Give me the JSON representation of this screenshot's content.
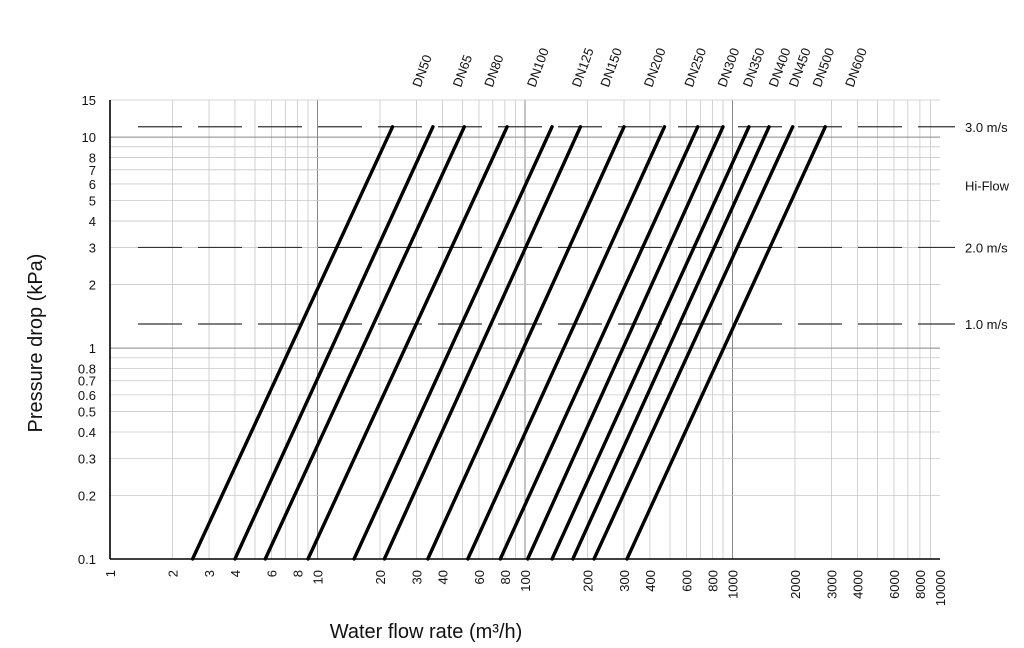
{
  "chart_data": {
    "type": "line",
    "xlabel": "Water flow rate (m³/h)",
    "ylabel": "Pressure drop (kPa)",
    "x_scale": "log",
    "y_scale": "log",
    "xlim": [
      1,
      10000
    ],
    "ylim": [
      0.1,
      15
    ],
    "grid": true,
    "x_ticks": [
      {
        "v": 1,
        "label": "1"
      },
      {
        "v": 2,
        "label": "2"
      },
      {
        "v": 3,
        "label": "3"
      },
      {
        "v": 4,
        "label": "4"
      },
      {
        "v": 6,
        "label": "6"
      },
      {
        "v": 8,
        "label": "8"
      },
      {
        "v": 10,
        "label": "10"
      },
      {
        "v": 20,
        "label": "20"
      },
      {
        "v": 30,
        "label": "30"
      },
      {
        "v": 40,
        "label": "40"
      },
      {
        "v": 60,
        "label": "60"
      },
      {
        "v": 80,
        "label": "80"
      },
      {
        "v": 100,
        "label": "100"
      },
      {
        "v": 200,
        "label": "200"
      },
      {
        "v": 300,
        "label": "300"
      },
      {
        "v": 400,
        "label": "400"
      },
      {
        "v": 600,
        "label": "600"
      },
      {
        "v": 800,
        "label": "800"
      },
      {
        "v": 1000,
        "label": "1000"
      },
      {
        "v": 2000,
        "label": "2000"
      },
      {
        "v": 3000,
        "label": "3000"
      },
      {
        "v": 4000,
        "label": "4000"
      },
      {
        "v": 6000,
        "label": "6000"
      },
      {
        "v": 8000,
        "label": "8000"
      },
      {
        "v": 10000,
        "label": "10000"
      }
    ],
    "y_ticks": [
      {
        "v": 0.1,
        "label": "0.1"
      },
      {
        "v": 0.2,
        "label": "0.2"
      },
      {
        "v": 0.3,
        "label": "0.3"
      },
      {
        "v": 0.4,
        "label": "0.4"
      },
      {
        "v": 0.5,
        "label": "0.5"
      },
      {
        "v": 0.6,
        "label": "0.6"
      },
      {
        "v": 0.7,
        "label": "0.7"
      },
      {
        "v": 0.8,
        "label": "0.8"
      },
      {
        "v": 1,
        "label": "1"
      },
      {
        "v": 2,
        "label": "2"
      },
      {
        "v": 3,
        "label": "3"
      },
      {
        "v": 4,
        "label": "4"
      },
      {
        "v": 5,
        "label": "5"
      },
      {
        "v": 6,
        "label": "6"
      },
      {
        "v": 7,
        "label": "7"
      },
      {
        "v": 8,
        "label": "8"
      },
      {
        "v": 10,
        "label": "10"
      },
      {
        "v": 15,
        "label": "15"
      }
    ],
    "reference_lines": [
      {
        "label": "3.0 m/s",
        "y": 11.2
      },
      {
        "label": "2.0 m/s",
        "y": 3.0
      },
      {
        "label": "1.0 m/s",
        "y": 1.3
      }
    ],
    "side_label": {
      "text": "Hi-Flow",
      "y": 5.9
    },
    "series": [
      {
        "name": "DN50",
        "x": [
          2.5,
          23
        ],
        "y": [
          0.1,
          11.2
        ]
      },
      {
        "name": "DN65",
        "x": [
          4,
          36
        ],
        "y": [
          0.1,
          11.2
        ]
      },
      {
        "name": "DN80",
        "x": [
          5.6,
          51
        ],
        "y": [
          0.1,
          11.2
        ]
      },
      {
        "name": "DN100",
        "x": [
          9,
          82
        ],
        "y": [
          0.1,
          11.2
        ]
      },
      {
        "name": "DN125",
        "x": [
          15,
          135
        ],
        "y": [
          0.1,
          11.2
        ]
      },
      {
        "name": "DN150",
        "x": [
          21,
          185
        ],
        "y": [
          0.1,
          11.2
        ]
      },
      {
        "name": "DN200",
        "x": [
          34,
          300
        ],
        "y": [
          0.1,
          11.2
        ]
      },
      {
        "name": "DN250",
        "x": [
          53,
          470
        ],
        "y": [
          0.1,
          11.2
        ]
      },
      {
        "name": "DN300",
        "x": [
          76,
          680
        ],
        "y": [
          0.1,
          11.2
        ]
      },
      {
        "name": "DN350",
        "x": [
          103,
          900
        ],
        "y": [
          0.1,
          11.2
        ]
      },
      {
        "name": "DN400",
        "x": [
          135,
          1200
        ],
        "y": [
          0.1,
          11.2
        ]
      },
      {
        "name": "DN450",
        "x": [
          170,
          1500
        ],
        "y": [
          0.1,
          11.2
        ]
      },
      {
        "name": "DN500",
        "x": [
          215,
          1950
        ],
        "y": [
          0.1,
          11.2
        ]
      },
      {
        "name": "DN600",
        "x": [
          310,
          2800
        ],
        "y": [
          0.1,
          11.2
        ]
      }
    ]
  }
}
